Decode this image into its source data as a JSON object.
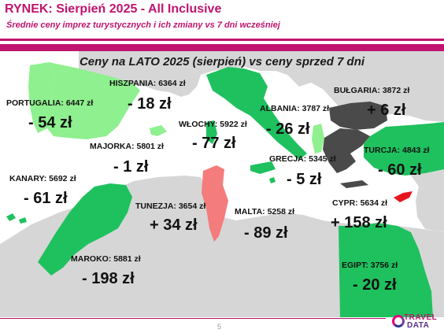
{
  "header": {
    "title": "RYNEK: Sierpień 2025 - All Inclusive",
    "subtitle": "Średnie ceny imprez turystycznych i ich zmiany vs 7 dni wcześniej"
  },
  "map": {
    "title": "Ceny na LATO 2025 (sierpień) vs ceny sprzed 7 dni",
    "colors": {
      "sea": "#ffffff",
      "land": "#d6d6d6",
      "light_green": "#8ef08e",
      "green": "#1fc15e",
      "dark_gray": "#4a4a4a",
      "coral": "#f47c7c",
      "red": "#e8141e"
    },
    "destinations": [
      {
        "id": "portugalia",
        "label": "PORTUGALIA:  6447 zł",
        "change": "- 54 zł",
        "color": "light_green"
      },
      {
        "id": "hiszpania",
        "label": "HISZPANIA: 6364 zł",
        "change": "- 18 zł",
        "color": "light_green"
      },
      {
        "id": "majorka",
        "label": "MAJORKA: 5801 zł",
        "change": "- 1 zł",
        "color": "light_green"
      },
      {
        "id": "kanary",
        "label": "KANARY: 5692 zł",
        "change": "- 61 zł",
        "color": "green"
      },
      {
        "id": "wlochy",
        "label": "WŁOCHY: 5922 zł",
        "change": "- 77 zł",
        "color": "green"
      },
      {
        "id": "albania",
        "label": "ALBANIA: 3787 zł",
        "change": "- 26 zł",
        "color": "light_green"
      },
      {
        "id": "bulgaria",
        "label": "BUŁGARIA: 3872 zł",
        "change": "+ 6 zł",
        "color": "dark_gray"
      },
      {
        "id": "turcja",
        "label": "TURCJA: 4843 zł",
        "change": "- 60 zł",
        "color": "green"
      },
      {
        "id": "grecja",
        "label": "GRECJA: 5345 zł",
        "change": "- 5 zł",
        "color": "dark_gray"
      },
      {
        "id": "tunezja",
        "label": "TUNEZJA: 3654 zł",
        "change": "+ 34 zł",
        "color": "coral"
      },
      {
        "id": "malta",
        "label": "MALTA: 5258 zł",
        "change": "- 89 zł",
        "color": "green"
      },
      {
        "id": "cypr",
        "label": "CYPR: 5634 zł",
        "change": "+ 158 zł",
        "color": "red"
      },
      {
        "id": "maroko",
        "label": "MAROKO: 5881 zł",
        "change": "- 198 zł",
        "color": "green"
      },
      {
        "id": "egipt",
        "label": "EGIPT: 3756 zł",
        "change": "- 20 zł",
        "color": "green"
      }
    ]
  },
  "footer": {
    "page_number": "5",
    "logo_line1": "TRAVEL",
    "logo_line2": "DATA"
  }
}
